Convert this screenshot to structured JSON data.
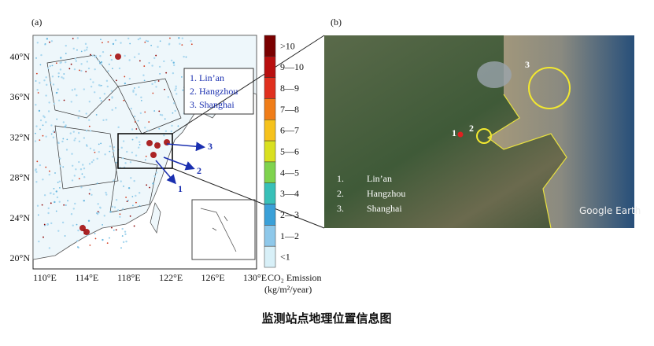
{
  "panel_a": {
    "label": "(a)",
    "lat_labels": [
      "40°N",
      "36°N",
      "32°N",
      "28°N",
      "24°N",
      "20°N"
    ],
    "lon_labels": [
      "110°E",
      "114°E",
      "118°E",
      "122°E",
      "126°E",
      "130°E"
    ],
    "legend": [
      "1. Lin’an",
      "2. Hangzhou",
      "3. Shanghai"
    ],
    "arrow_labels": [
      "1",
      "2",
      "3"
    ]
  },
  "colorbar": {
    "labels": [
      ">10",
      "9—10",
      "8—9",
      "7—8",
      "6—7",
      "5—6",
      "4—5",
      "3—4",
      "2—3",
      "1—2",
      "<1"
    ],
    "title": "CO₂ Emission",
    "unit": "(kg/m²/year)"
  },
  "panel_b": {
    "label": "(b)",
    "site_labels": [
      "1",
      "2",
      "3"
    ],
    "list": [
      {
        "num": "1.",
        "name": "Lin’an"
      },
      {
        "num": "2.",
        "name": "Hangzhou"
      },
      {
        "num": "3.",
        "name": "Shanghai"
      }
    ],
    "credit": "Google Earth"
  },
  "caption": "监测站点地理位置信息图"
}
